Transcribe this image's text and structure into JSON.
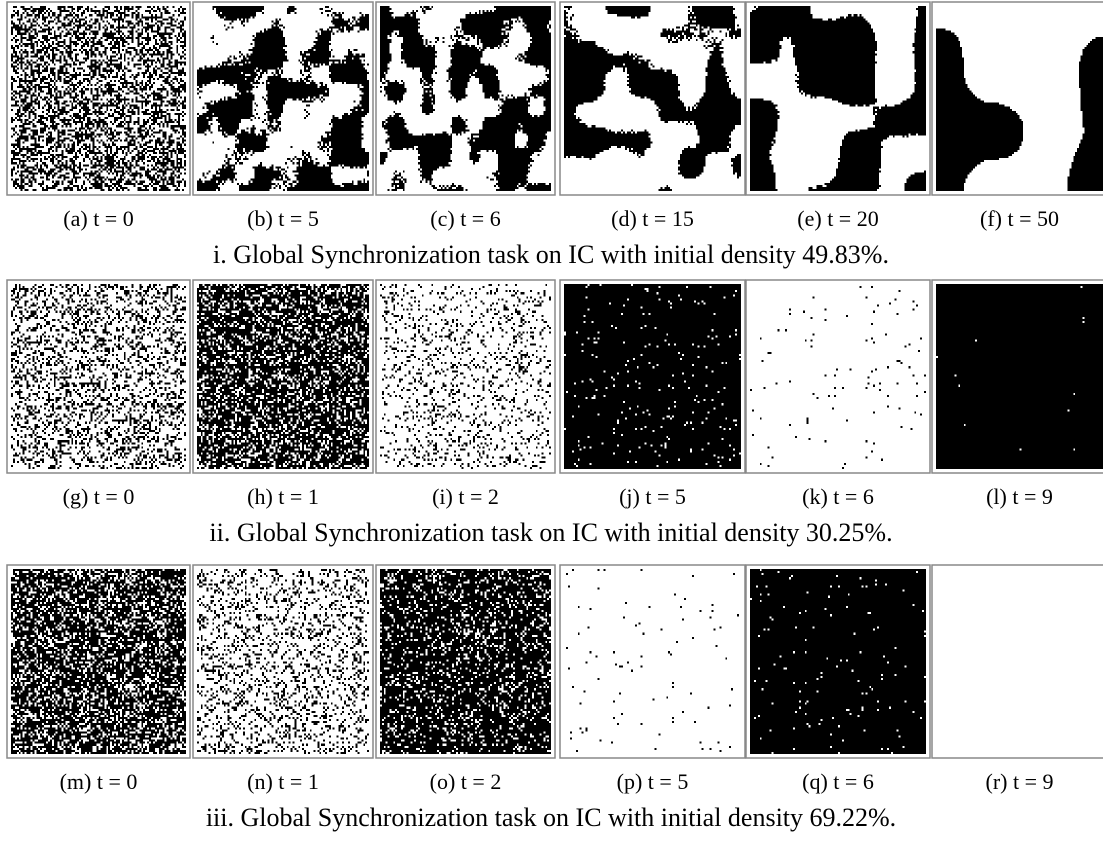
{
  "figure": {
    "rows": [
      {
        "panels": [
          {
            "label": "(a) t = 0"
          },
          {
            "label": "(b) t = 5"
          },
          {
            "label": "(c) t = 6"
          },
          {
            "label": "(d) t = 15"
          },
          {
            "label": "(e) t = 20"
          },
          {
            "label": "(f) t = 50"
          }
        ],
        "caption": "i. Global Synchronization task on IC with initial density 49.83%."
      },
      {
        "panels": [
          {
            "label": "(g) t = 0"
          },
          {
            "label": "(h) t = 1"
          },
          {
            "label": "(i) t = 2"
          },
          {
            "label": "(j) t = 5"
          },
          {
            "label": "(k) t = 6"
          },
          {
            "label": "(l) t = 9"
          }
        ],
        "caption": "ii. Global Synchronization task on IC with initial density 30.25%."
      },
      {
        "panels": [
          {
            "label": "(m) t = 0"
          },
          {
            "label": "(n) t = 1"
          },
          {
            "label": "(o) t = 2"
          },
          {
            "label": "(p) t = 5"
          },
          {
            "label": "(q) t = 6"
          },
          {
            "label": "(r) t = 9"
          }
        ],
        "caption": "iii. Global Synchronization task on IC with initial density 69.22%."
      }
    ]
  }
}
